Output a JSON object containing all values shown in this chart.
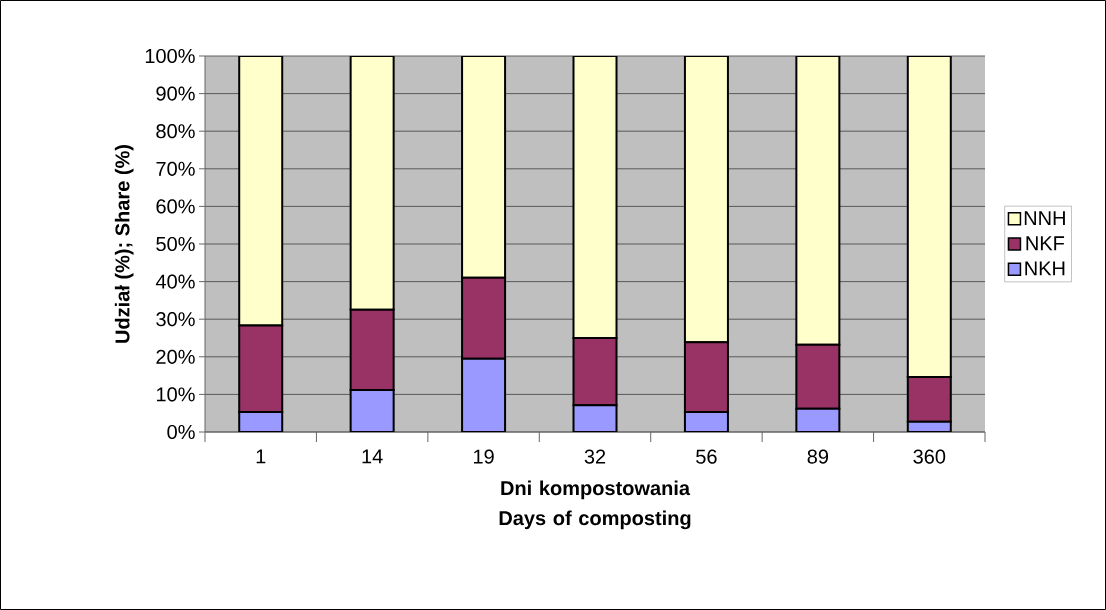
{
  "chart_data": {
    "type": "bar",
    "stacked": true,
    "xlabel": "Dni kompostowania Days of composting",
    "ylabel": "Udział (%); Share (%)",
    "categories": [
      "1",
      "14",
      "19",
      "32",
      "56",
      "89",
      "360"
    ],
    "series": [
      {
        "name": "NKH",
        "color": "#9999ff",
        "values": [
          5.3,
          11.2,
          19.5,
          7.1,
          5.3,
          6.2,
          2.7
        ]
      },
      {
        "name": "NKF",
        "color": "#993366",
        "values": [
          23.0,
          21.3,
          21.5,
          17.9,
          18.6,
          17.0,
          11.9
        ]
      },
      {
        "name": "NNH",
        "color": "#ffffcc",
        "values": [
          71.7,
          67.5,
          59.0,
          75.0,
          76.1,
          76.8,
          85.4
        ]
      }
    ],
    "ylim": [
      0,
      100
    ],
    "yticks": [
      {
        "value": 0,
        "label": "0%"
      },
      {
        "value": 10,
        "label": "10%"
      },
      {
        "value": 20,
        "label": "20%"
      },
      {
        "value": 30,
        "label": "30%"
      },
      {
        "value": 40,
        "label": "40%"
      },
      {
        "value": 50,
        "label": "50%"
      },
      {
        "value": 60,
        "label": "60%"
      },
      {
        "value": 70,
        "label": "70%"
      },
      {
        "value": 80,
        "label": "80%"
      },
      {
        "value": 90,
        "label": "90%"
      },
      {
        "value": 100,
        "label": "100%"
      }
    ],
    "grid": "y",
    "legend": "right"
  }
}
